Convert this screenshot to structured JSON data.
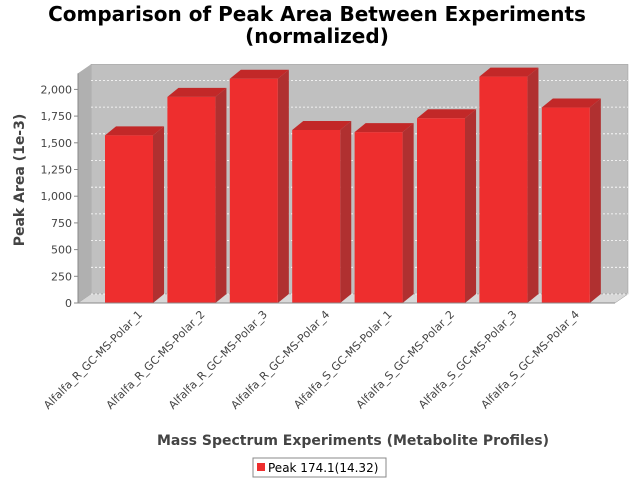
{
  "chart_data": {
    "type": "bar",
    "title": "Comparison of Peak Area Between Experiments",
    "subtitle": "(normalized)",
    "xlabel": "Mass Spectrum Experiments (Metabolite Profiles)",
    "ylabel": "Peak Area (1e-3)",
    "ylim": [
      0,
      2150
    ],
    "yticks": [
      0,
      250,
      500,
      750,
      1000,
      1250,
      1500,
      1750,
      2000
    ],
    "ytick_labels": [
      "0",
      "250",
      "500",
      "750",
      "1,000",
      "1,250",
      "1,500",
      "1,750",
      "2,000"
    ],
    "grid": true,
    "legend_position": "bottom-center",
    "categories": [
      "Alfalfa_R_GC-MS-Polar_1",
      "Alfalfa_R_GC-MS-Polar_2",
      "Alfalfa_R_GC-MS-Polar_3",
      "Alfalfa_R_GC-MS-Polar_4",
      "Alfalfa_S_GC-MS-Polar_1",
      "Alfalfa_S_GC-MS-Polar_2",
      "Alfalfa_S_GC-MS-Polar_3",
      "Alfalfa_S_GC-MS-Polar_4"
    ],
    "series": [
      {
        "name": "Peak 174.1(14.32)",
        "color": "#ee2e2e",
        "values": [
          1570,
          1930,
          2100,
          1620,
          1600,
          1730,
          2120,
          1830
        ]
      }
    ]
  }
}
